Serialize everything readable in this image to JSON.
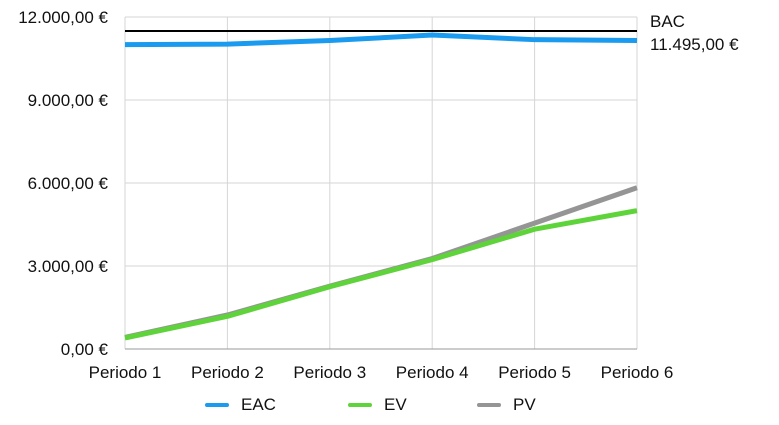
{
  "chart_data": {
    "type": "line",
    "categories": [
      "Periodo 1",
      "Periodo 2",
      "Periodo 3",
      "Periodo 4",
      "Periodo 5",
      "Periodo 6"
    ],
    "ylim": [
      0,
      12000
    ],
    "yticks": [
      0,
      3000,
      6000,
      9000,
      12000
    ],
    "ytick_labels": [
      "0,00 €",
      "3.000,00 €",
      "6.000,00 €",
      "9.000,00 €",
      "12.000,00 €"
    ],
    "grid": true,
    "legend_position": "bottom",
    "series": [
      {
        "name": "EAC",
        "color": "#1a9bef",
        "values": [
          11000,
          11020,
          11150,
          11350,
          11180,
          11150
        ]
      },
      {
        "name": "EV",
        "color": "#5ed43a",
        "values": [
          400,
          1180,
          2250,
          3230,
          4330,
          5000
        ]
      },
      {
        "name": "PV",
        "color": "#959595",
        "values": [
          420,
          1230,
          2270,
          3270,
          4550,
          5830
        ]
      }
    ],
    "reference_line": {
      "name": "BAC",
      "value": 11495,
      "value_label": "11.495,00 €",
      "color": "#000000"
    }
  }
}
